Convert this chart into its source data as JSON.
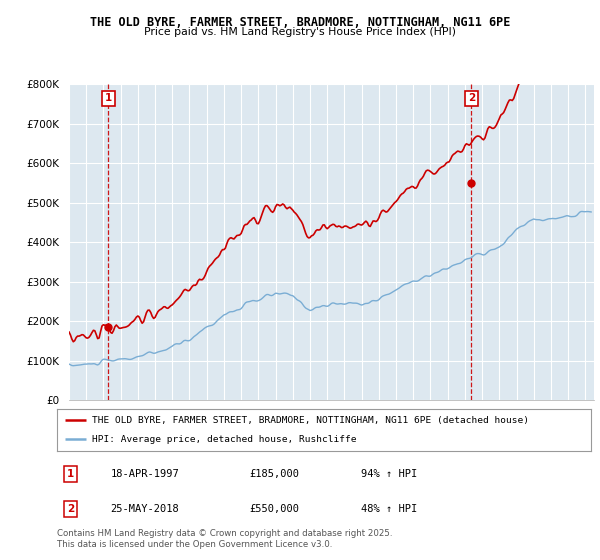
{
  "title1": "THE OLD BYRE, FARMER STREET, BRADMORE, NOTTINGHAM, NG11 6PE",
  "title2": "Price paid vs. HM Land Registry's House Price Index (HPI)",
  "legend_line1": "THE OLD BYRE, FARMER STREET, BRADMORE, NOTTINGHAM, NG11 6PE (detached house)",
  "legend_line2": "HPI: Average price, detached house, Rushcliffe",
  "sale1_date": "18-APR-1997",
  "sale1_price": "£185,000",
  "sale1_hpi": "94% ↑ HPI",
  "sale2_date": "25-MAY-2018",
  "sale2_price": "£550,000",
  "sale2_hpi": "48% ↑ HPI",
  "footer": "Contains HM Land Registry data © Crown copyright and database right 2025.\nThis data is licensed under the Open Government Licence v3.0.",
  "red_color": "#cc0000",
  "blue_color": "#7aadd4",
  "marker1_year": 1997.29,
  "marker1_price": 185000,
  "marker2_year": 2018.38,
  "marker2_price": 550000,
  "ylim_max": 800000,
  "chart_bg": "#dde8f0",
  "grid_color": "#ffffff",
  "background_color": "#ffffff"
}
